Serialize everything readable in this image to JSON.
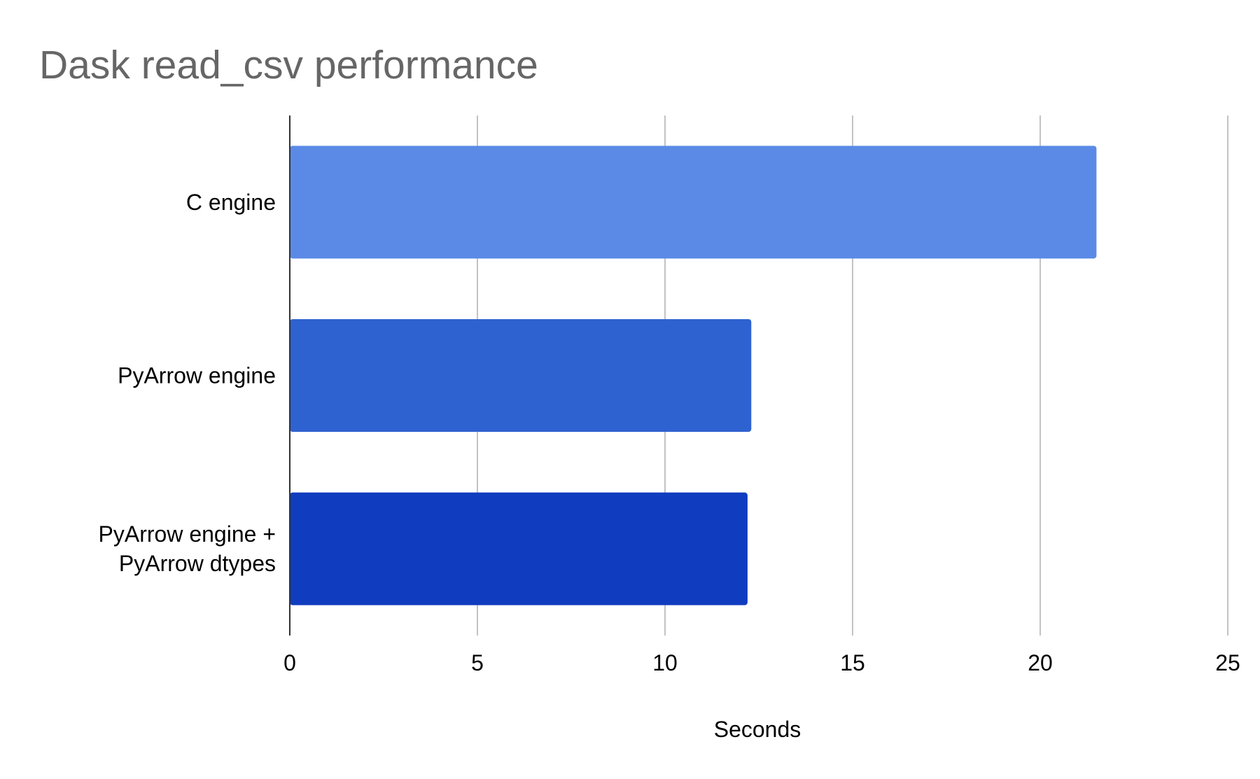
{
  "chart_data": {
    "type": "bar",
    "orientation": "horizontal",
    "title": "Dask read_csv performance",
    "xlabel": "Seconds",
    "ylabel": "",
    "xlim": [
      0,
      25
    ],
    "xticks": [
      0,
      5,
      10,
      15,
      20,
      25
    ],
    "xtick_labels": [
      "0",
      "5",
      "10",
      "15",
      "20",
      "25"
    ],
    "grid": "vertical",
    "legend": "none",
    "categories": [
      [
        "C engine"
      ],
      [
        "PyArrow engine"
      ],
      [
        "PyArrow engine +",
        "PyArrow dtypes"
      ]
    ],
    "values": [
      21.5,
      12.3,
      12.2
    ],
    "colors": [
      "#5b8ae6",
      "#2f62d1",
      "#103cbf"
    ],
    "gridline_color": "#c3c3c3",
    "axis_color": "#333333"
  }
}
